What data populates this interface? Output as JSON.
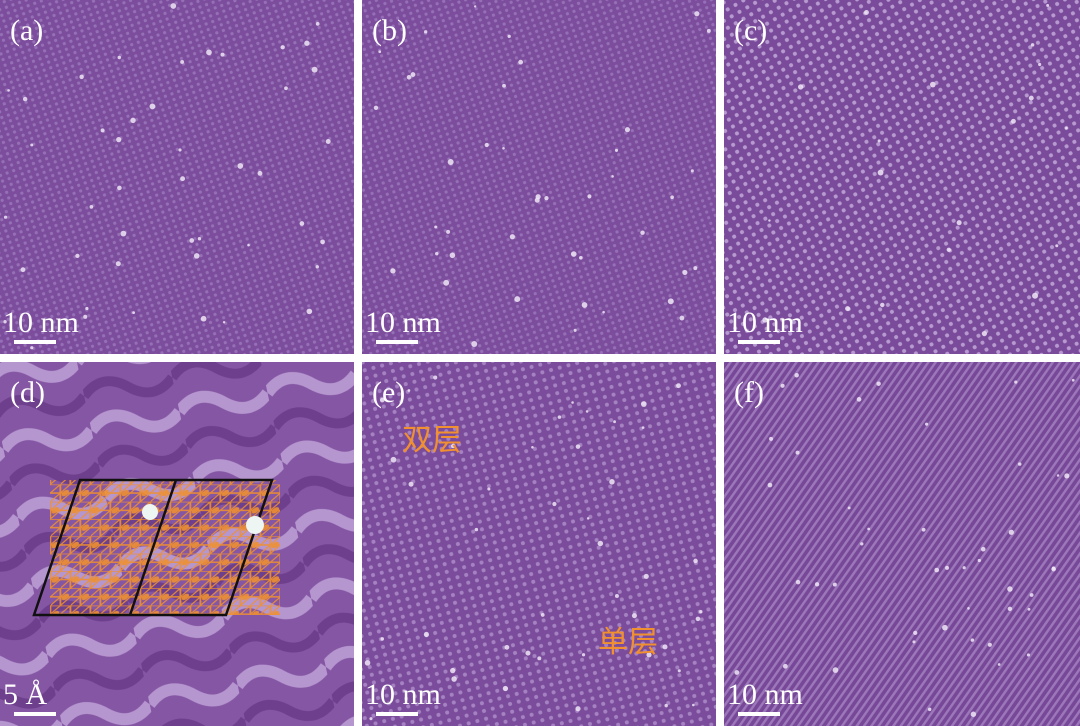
{
  "panels": [
    {
      "label": "(a)",
      "scale_bar": "10 nm"
    },
    {
      "label": "(b)",
      "scale_bar": "10 nm"
    },
    {
      "label": "(c)",
      "scale_bar": "10 nm"
    },
    {
      "label": "(d)",
      "scale_bar": "5 Å"
    },
    {
      "label": "(e)",
      "scale_bar": "10 nm",
      "annotations": [
        "双层",
        "单层"
      ]
    },
    {
      "label": "(f)",
      "scale_bar": "10 nm"
    }
  ]
}
